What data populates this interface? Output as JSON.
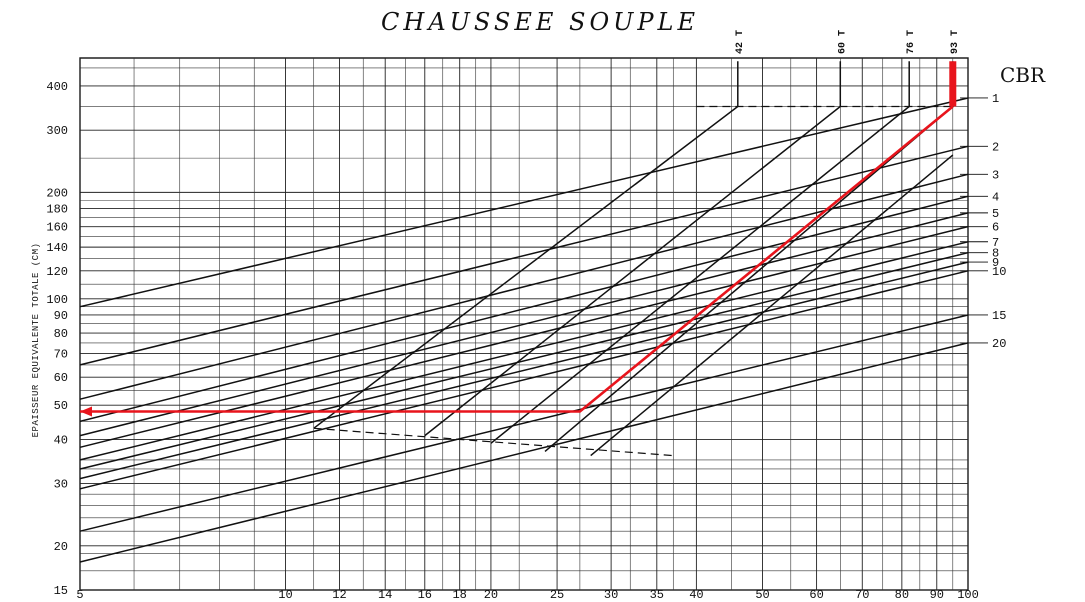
{
  "chart_data": {
    "type": "line",
    "title": "CHAUSSEE SOUPLE",
    "ylabel": "EPAISSEUR EQUIVALENTE TOTALE (CM)",
    "xlabel": "",
    "right_axis_label": "CBR",
    "y_scale": "log",
    "x_scale": "log",
    "ylim": [
      15,
      480
    ],
    "xlim": [
      5,
      100
    ],
    "y_tick_labels": [
      "400",
      "300",
      "200",
      "180",
      "160",
      "140",
      "120",
      "100",
      "90",
      "80",
      "70",
      "60",
      "50",
      "40",
      "30",
      "20",
      "15"
    ],
    "y_tick_values": [
      400,
      300,
      200,
      180,
      160,
      140,
      120,
      100,
      90,
      80,
      70,
      60,
      50,
      40,
      30,
      20,
      15
    ],
    "x_tick_labels": [
      "5",
      "10",
      "12",
      "14",
      "16",
      "18",
      "20",
      "25",
      "30",
      "35",
      "40",
      "50",
      "60",
      "70",
      "80",
      "90",
      "100"
    ],
    "x_tick_values": [
      5,
      10,
      12,
      14,
      16,
      18,
      20,
      25,
      30,
      35,
      40,
      50,
      60,
      70,
      80,
      90,
      100
    ],
    "cbr_labels": [
      "1",
      "2",
      "3",
      "4",
      "5",
      "6",
      "7",
      "8",
      "9",
      "10",
      "15",
      "20"
    ],
    "load_labels": [
      "42 T",
      "60 T",
      "76 T",
      "93 T"
    ],
    "grid": true,
    "series": [
      {
        "name": "42 T",
        "x": [
          11,
          46,
          46
        ],
        "y": [
          43,
          350,
          470
        ]
      },
      {
        "name": "60 T",
        "x": [
          16,
          65,
          65
        ],
        "y": [
          41,
          350,
          470
        ]
      },
      {
        "name": "76 T",
        "x": [
          20,
          82,
          82
        ],
        "y": [
          39,
          350,
          470
        ]
      },
      {
        "name": "93 T",
        "x": [
          24,
          95,
          95
        ],
        "y": [
          37,
          350,
          470
        ]
      },
      {
        "name": "",
        "x": [
          28,
          95
        ],
        "y": [
          36,
          255
        ]
      },
      {
        "name": "1",
        "x": [
          5,
          100
        ],
        "y": [
          95,
          370
        ]
      },
      {
        "name": "2",
        "x": [
          5,
          100
        ],
        "y": [
          65,
          270
        ]
      },
      {
        "name": "3",
        "x": [
          5,
          100
        ],
        "y": [
          52,
          225
        ]
      },
      {
        "name": "4",
        "x": [
          5,
          100
        ],
        "y": [
          45,
          195
        ]
      },
      {
        "name": "5",
        "x": [
          5,
          100
        ],
        "y": [
          41,
          175
        ]
      },
      {
        "name": "6",
        "x": [
          5,
          100
        ],
        "y": [
          38,
          160
        ]
      },
      {
        "name": "7",
        "x": [
          5,
          100
        ],
        "y": [
          35,
          145
        ]
      },
      {
        "name": "8",
        "x": [
          5,
          100
        ],
        "y": [
          33,
          135
        ]
      },
      {
        "name": "9",
        "x": [
          5,
          100
        ],
        "y": [
          31,
          127
        ]
      },
      {
        "name": "10",
        "x": [
          5,
          100
        ],
        "y": [
          29,
          120
        ]
      },
      {
        "name": "15",
        "x": [
          5,
          100
        ],
        "y": [
          22,
          90
        ]
      },
      {
        "name": "20",
        "x": [
          5,
          100
        ],
        "y": [
          18,
          75
        ]
      }
    ],
    "reference_lines": [
      {
        "style": "dashed",
        "x": [
          40,
          95
        ],
        "y": [
          350,
          350
        ]
      },
      {
        "style": "dashed",
        "x": [
          11,
          37
        ],
        "y": [
          43,
          36
        ]
      }
    ],
    "highlight_path": {
      "color": "#e8141c",
      "x": [
        95,
        95,
        27,
        5
      ],
      "y": [
        470,
        350,
        48,
        48
      ]
    }
  }
}
